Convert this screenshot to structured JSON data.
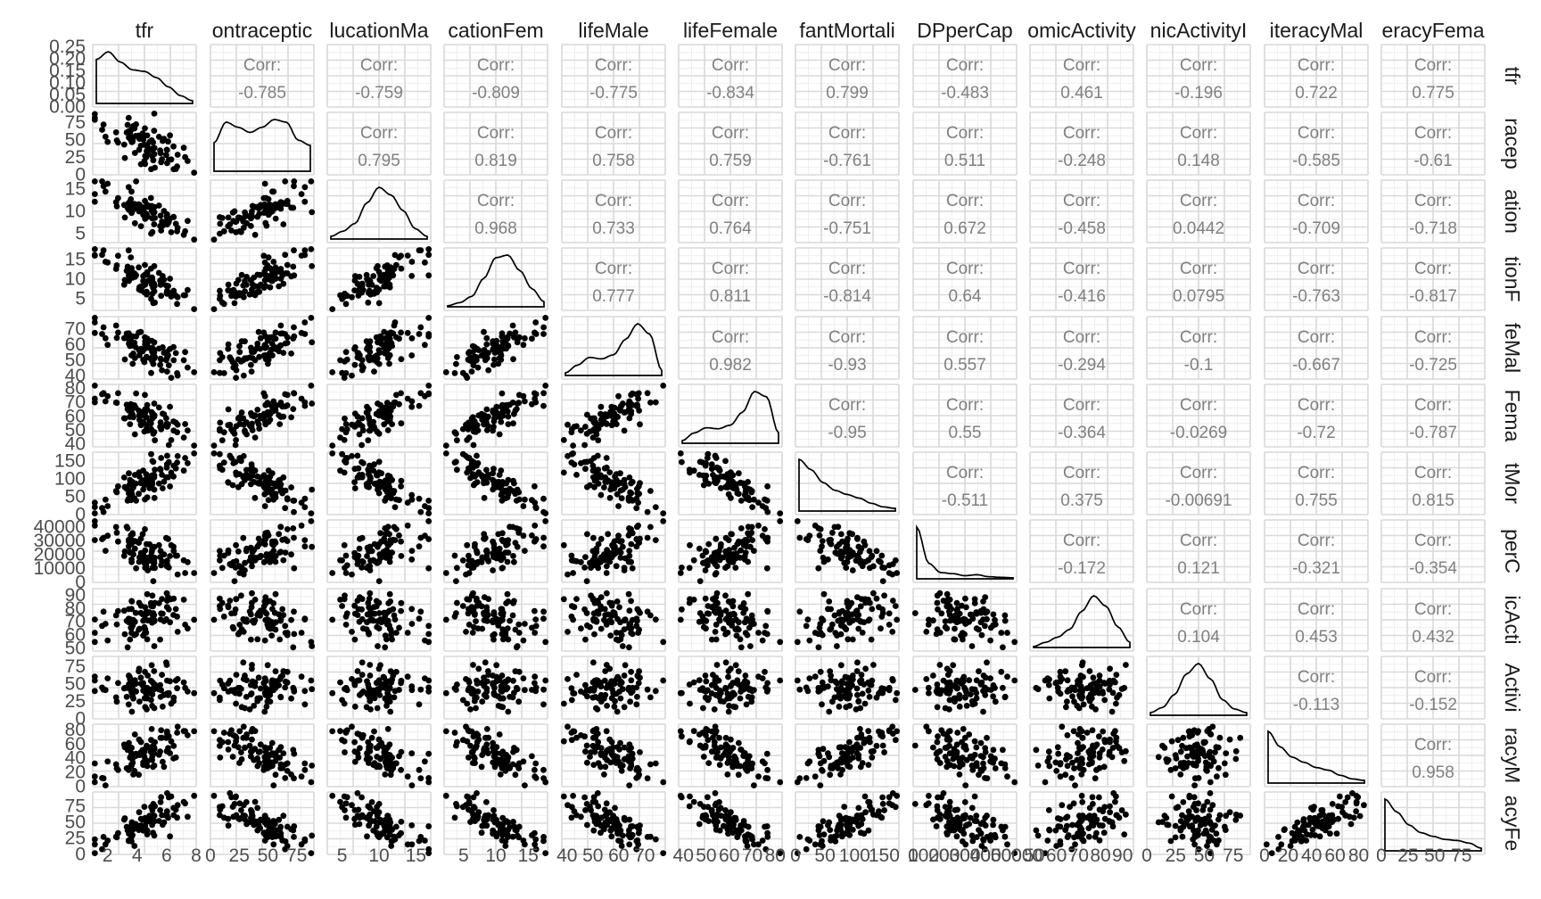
{
  "chart_data": {
    "type": "scatter",
    "title": "",
    "variables": [
      "tfr",
      "contraceptive",
      "educationMale",
      "educationFemale",
      "lifeMale",
      "lifeFemale",
      "infantMortality",
      "GDPperCapita",
      "economicActivityMale",
      "economicActivityFemale",
      "illiteracyMale",
      "illiteracyFemale"
    ],
    "strip_labels_top": [
      "tfr",
      "ontraceptic",
      "lucationMa",
      "cationFem",
      "lifeMale",
      "lifeFemale",
      "fantMortali",
      "DPperCap",
      "omicActivity",
      "nicActivityI",
      "iteracyMal",
      "eracyFema"
    ],
    "strip_labels_right": [
      "tfr",
      "racep",
      "ation",
      "tionF",
      "feMal",
      "Fema",
      "tMor",
      "perC",
      "icActi",
      "Activi",
      "racyM",
      "acyFe"
    ],
    "corr_label": "Corr:",
    "correlations": {
      "1": [
        "-0.785"
      ],
      "2": [
        "-0.759",
        "0.795"
      ],
      "3": [
        "-0.809",
        "0.819",
        "0.968"
      ],
      "4": [
        "-0.775",
        "0.758",
        "0.733",
        "0.777"
      ],
      "5": [
        "-0.834",
        "0.759",
        "0.764",
        "0.811",
        "0.982"
      ],
      "6": [
        "0.799",
        "-0.761",
        "-0.751",
        "-0.814",
        "-0.93",
        "-0.95"
      ],
      "7": [
        "-0.483",
        "0.511",
        "0.672",
        "0.64",
        "0.557",
        "0.55",
        "-0.511"
      ],
      "8": [
        "0.461",
        "-0.248",
        "-0.458",
        "-0.416",
        "-0.294",
        "-0.364",
        "0.375",
        "-0.172"
      ],
      "9": [
        "-0.196",
        "0.148",
        "0.0442",
        "0.0795",
        "-0.1",
        "-0.0269",
        "-0.00691",
        "0.121",
        "0.104"
      ],
      "10": [
        "0.722",
        "-0.585",
        "-0.709",
        "-0.763",
        "-0.667",
        "-0.72",
        "0.755",
        "-0.321",
        "0.453",
        "-0.113"
      ],
      "11": [
        "0.775",
        "-0.61",
        "-0.718",
        "-0.817",
        "-0.725",
        "-0.787",
        "0.815",
        "-0.354",
        "0.432",
        "-0.152",
        "0.958"
      ]
    },
    "y_ticks": [
      [
        "0.00",
        "0.05",
        "0.10",
        "0.15",
        "0.20",
        "0.25"
      ],
      [
        "0",
        "25",
        "50",
        "75"
      ],
      [
        "5",
        "10",
        "15"
      ],
      [
        "5",
        "10",
        "15"
      ],
      [
        "40",
        "50",
        "60",
        "70"
      ],
      [
        "40",
        "50",
        "60",
        "70",
        "80"
      ],
      [
        "0",
        "50",
        "100",
        "150"
      ],
      [
        "0",
        "10000",
        "20000",
        "30000",
        "40000"
      ],
      [
        "50",
        "60",
        "70",
        "80",
        "90"
      ],
      [
        "0",
        "25",
        "50",
        "75"
      ],
      [
        "0",
        "20",
        "40",
        "60",
        "80"
      ],
      [
        "0",
        "25",
        "50",
        "75"
      ]
    ],
    "x_ticks": [
      [
        "2",
        "4",
        "6",
        "8"
      ],
      [
        "0",
        "25",
        "50",
        "75"
      ],
      [
        "5",
        "10",
        "15"
      ],
      [
        "5",
        "10",
        "15"
      ],
      [
        "40",
        "50",
        "60",
        "70"
      ],
      [
        "40",
        "50",
        "60",
        "70",
        "80"
      ],
      [
        "0",
        "50",
        "100",
        "150"
      ],
      [
        "0",
        "10000",
        "20000",
        "30000",
        "40000",
        "50000"
      ],
      [
        "50",
        "60",
        "70",
        "80",
        "90"
      ],
      [
        "0",
        "25",
        "50",
        "75"
      ],
      [
        "0",
        "20",
        "40",
        "60",
        "80"
      ],
      [
        "0",
        "25",
        "50",
        "75"
      ]
    ],
    "ranges": [
      [
        1.0,
        8.0
      ],
      [
        0,
        90
      ],
      [
        3,
        17
      ],
      [
        2,
        18
      ],
      [
        38,
        78
      ],
      [
        38,
        83
      ],
      [
        0,
        175
      ],
      [
        0,
        50000
      ],
      [
        48,
        95
      ],
      [
        0,
        90
      ],
      [
        0,
        88
      ],
      [
        0,
        97
      ]
    ],
    "panel_y_range": [
      [
        0,
        0.26
      ],
      [
        0,
        90
      ],
      [
        3,
        17
      ],
      [
        2,
        18
      ],
      [
        38,
        78
      ],
      [
        38,
        83
      ],
      [
        0,
        175
      ],
      [
        0,
        45000
      ],
      [
        48,
        95
      ],
      [
        0,
        90
      ],
      [
        0,
        88
      ],
      [
        0,
        97
      ]
    ],
    "grid": true,
    "legend": "none"
  }
}
